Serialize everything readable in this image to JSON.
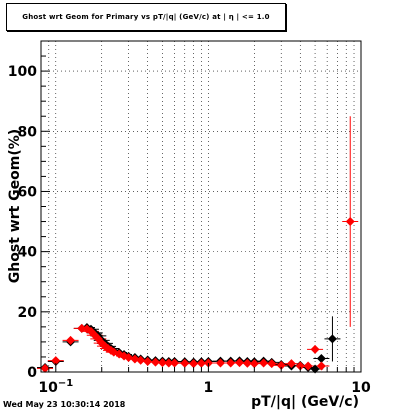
{
  "canvas": {
    "date_stamp": "Wed May 23 10:30:14 2018"
  },
  "chart_data": {
    "type": "scatter",
    "title": "Ghost wrt Geom for Primary vs pT/|q| (GeV/c) at | η | <= 1.0",
    "xlabel": "pT/|q| (GeV/c)",
    "ylabel": "Ghost wrt Geom(%)",
    "xscale": "log",
    "xlim": [
      0.08,
      10
    ],
    "ylim": [
      0,
      110
    ],
    "x_tick_labels": [
      "10−1",
      "1",
      "10"
    ],
    "y_tick_labels": [
      "0",
      "20",
      "40",
      "60",
      "80",
      "100"
    ],
    "grid": true,
    "series": [
      {
        "color": "#000000",
        "marker": "diamond",
        "points": [
          {
            "x": 0.085,
            "y": 1.5
          },
          {
            "x": 0.1,
            "y": 3.5
          },
          {
            "x": 0.125,
            "y": 10
          },
          {
            "x": 0.148,
            "y": 14.5
          },
          {
            "x": 0.16,
            "y": 14.8
          },
          {
            "x": 0.17,
            "y": 14.2
          },
          {
            "x": 0.18,
            "y": 13
          },
          {
            "x": 0.19,
            "y": 12
          },
          {
            "x": 0.2,
            "y": 10.5
          },
          {
            "x": 0.21,
            "y": 9.5
          },
          {
            "x": 0.22,
            "y": 8.5
          },
          {
            "x": 0.23,
            "y": 7.8
          },
          {
            "x": 0.24,
            "y": 7
          },
          {
            "x": 0.26,
            "y": 6.5
          },
          {
            "x": 0.28,
            "y": 5.8
          },
          {
            "x": 0.3,
            "y": 5.2
          },
          {
            "x": 0.33,
            "y": 4.8
          },
          {
            "x": 0.36,
            "y": 4.3
          },
          {
            "x": 0.4,
            "y": 4
          },
          {
            "x": 0.45,
            "y": 3.8
          },
          {
            "x": 0.5,
            "y": 3.6
          },
          {
            "x": 0.55,
            "y": 3.5
          },
          {
            "x": 0.6,
            "y": 3.5
          },
          {
            "x": 0.7,
            "y": 3.4
          },
          {
            "x": 0.8,
            "y": 3.3
          },
          {
            "x": 0.9,
            "y": 3.4
          },
          {
            "x": 1.0,
            "y": 3.5
          },
          {
            "x": 1.2,
            "y": 3.6
          },
          {
            "x": 1.4,
            "y": 3.6
          },
          {
            "x": 1.6,
            "y": 3.7
          },
          {
            "x": 1.8,
            "y": 3.5
          },
          {
            "x": 2.0,
            "y": 3.4
          },
          {
            "x": 2.3,
            "y": 3.6
          },
          {
            "x": 2.6,
            "y": 3.2
          },
          {
            "x": 3.0,
            "y": 2.5
          },
          {
            "x": 3.5,
            "y": 2.0
          },
          {
            "x": 4.0,
            "y": 2.2
          },
          {
            "x": 4.5,
            "y": 1.5
          },
          {
            "x": 5.0,
            "y": 1.0
          },
          {
            "x": 5.5,
            "y": 4.5
          },
          {
            "x": 6.5,
            "y": 11
          }
        ]
      },
      {
        "color": "#ff0000",
        "marker": "diamond",
        "points": [
          {
            "x": 0.085,
            "y": 1.2
          },
          {
            "x": 0.1,
            "y": 3.8
          },
          {
            "x": 0.125,
            "y": 10.5
          },
          {
            "x": 0.148,
            "y": 14.5
          },
          {
            "x": 0.16,
            "y": 14.3
          },
          {
            "x": 0.17,
            "y": 13.5
          },
          {
            "x": 0.18,
            "y": 12.2
          },
          {
            "x": 0.19,
            "y": 11
          },
          {
            "x": 0.2,
            "y": 9.6
          },
          {
            "x": 0.21,
            "y": 8.6
          },
          {
            "x": 0.22,
            "y": 7.8
          },
          {
            "x": 0.23,
            "y": 7.2
          },
          {
            "x": 0.24,
            "y": 6.6
          },
          {
            "x": 0.26,
            "y": 6.0
          },
          {
            "x": 0.28,
            "y": 5.3
          },
          {
            "x": 0.3,
            "y": 4.8
          },
          {
            "x": 0.33,
            "y": 4.3
          },
          {
            "x": 0.36,
            "y": 3.9
          },
          {
            "x": 0.4,
            "y": 3.5
          },
          {
            "x": 0.45,
            "y": 3.3
          },
          {
            "x": 0.5,
            "y": 3.1
          },
          {
            "x": 0.55,
            "y": 3.0
          },
          {
            "x": 0.6,
            "y": 3.0
          },
          {
            "x": 0.7,
            "y": 2.9
          },
          {
            "x": 0.8,
            "y": 2.8
          },
          {
            "x": 0.9,
            "y": 2.9
          },
          {
            "x": 1.0,
            "y": 3.0
          },
          {
            "x": 1.2,
            "y": 3.0
          },
          {
            "x": 1.4,
            "y": 3.0
          },
          {
            "x": 1.6,
            "y": 3.1
          },
          {
            "x": 1.8,
            "y": 2.9
          },
          {
            "x": 2.0,
            "y": 2.8
          },
          {
            "x": 2.3,
            "y": 3.0
          },
          {
            "x": 2.6,
            "y": 2.8
          },
          {
            "x": 3.0,
            "y": 2.2
          },
          {
            "x": 3.5,
            "y": 2.8
          },
          {
            "x": 4.0,
            "y": 2.0
          },
          {
            "x": 4.5,
            "y": 2.0
          },
          {
            "x": 5.0,
            "y": 7.5
          },
          {
            "x": 5.5,
            "y": 2.0
          },
          {
            "x": 8.5,
            "y": 50
          }
        ]
      }
    ]
  }
}
